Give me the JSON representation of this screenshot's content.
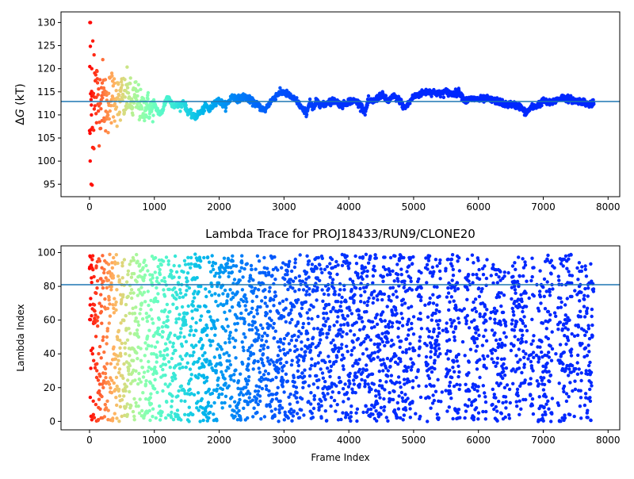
{
  "chart_data": [
    {
      "type": "scatter",
      "title": "",
      "xlabel": "",
      "ylabel": "ΔG (kT)",
      "ylabel_parts": {
        "delta": "Δ",
        "var": "G",
        "unit": " (kT)"
      },
      "xlim": [
        -440,
        8180
      ],
      "ylim": [
        92.3,
        132.3
      ],
      "xticks": [
        0,
        1000,
        2000,
        3000,
        4000,
        5000,
        6000,
        7000,
        8000
      ],
      "yticks": [
        95,
        100,
        105,
        110,
        115,
        120,
        125,
        130
      ],
      "hline": 112.9,
      "hline_color": "#1f77b4",
      "grid": false,
      "legend": "none",
      "colormap": "rainbow (frame index: red → violet)",
      "trace_x": [
        0,
        50,
        100,
        150,
        200,
        250,
        300,
        350,
        400,
        450,
        500,
        550,
        600,
        650,
        700,
        750,
        800,
        850,
        900,
        950,
        1000,
        1050,
        1100,
        1150,
        1200,
        1250,
        1300,
        1350,
        1400,
        1450,
        1500,
        1550,
        1600,
        1650,
        1700,
        1750,
        1800,
        1850,
        1900,
        1950,
        2000,
        2100,
        2200,
        2300,
        2400,
        2500,
        2600,
        2700,
        2800,
        2900,
        3000,
        3100,
        3200,
        3300,
        3350,
        3400,
        3450,
        3500,
        3600,
        3700,
        3800,
        3900,
        4000,
        4100,
        4200,
        4250,
        4300,
        4400,
        4500,
        4600,
        4700,
        4800,
        4850,
        4900,
        5000,
        5100,
        5200,
        5300,
        5400,
        5500,
        5600,
        5700,
        5800,
        5900,
        6000,
        6100,
        6200,
        6300,
        6400,
        6500,
        6600,
        6650,
        6700,
        6750,
        6800,
        6900,
        7000,
        7100,
        7200,
        7300,
        7400,
        7500,
        7600,
        7700,
        7780
      ],
      "trace_y": [
        110,
        112,
        114,
        113,
        115,
        112,
        113,
        114,
        115,
        112,
        114,
        113,
        115,
        112,
        114,
        113,
        111,
        112,
        112,
        111,
        112,
        111,
        110,
        112,
        114,
        113,
        112,
        112,
        112,
        113,
        111,
        110.5,
        109.5,
        109.8,
        110.5,
        111,
        112,
        111,
        112,
        113,
        113,
        112,
        114,
        113.5,
        114,
        113,
        112,
        111,
        113,
        114.5,
        115,
        114,
        113,
        111,
        110.5,
        113,
        111,
        113,
        112,
        113,
        113,
        112,
        113,
        113,
        112,
        110.5,
        113,
        113,
        114.5,
        113,
        114,
        113,
        111.5,
        112,
        114,
        114.5,
        115,
        115,
        114.5,
        115,
        114.5,
        115,
        113,
        113.5,
        113.3,
        113.5,
        113.2,
        113,
        112.3,
        112.3,
        112,
        111.8,
        110.8,
        110.5,
        111.5,
        112,
        113,
        112.5,
        113.2,
        113.8,
        113.5,
        113,
        113,
        112.3,
        112.5
      ]
    },
    {
      "type": "scatter",
      "title": "Lambda Trace for PROJ18433/RUN9/CLONE20",
      "xlabel": "Frame Index",
      "ylabel": "Lambda Index",
      "xlim": [
        -440,
        8180
      ],
      "ylim": [
        -5,
        104
      ],
      "xticks": [
        0,
        1000,
        2000,
        3000,
        4000,
        5000,
        6000,
        7000,
        8000
      ],
      "yticks": [
        0,
        20,
        40,
        60,
        80,
        100
      ],
      "hline": 81,
      "hline_color": "#1f77b4",
      "grid": false,
      "legend": "none",
      "colormap": "rainbow (frame index: red → violet)",
      "x_range": [
        0,
        7780
      ],
      "y_range": [
        0,
        99
      ]
    }
  ]
}
